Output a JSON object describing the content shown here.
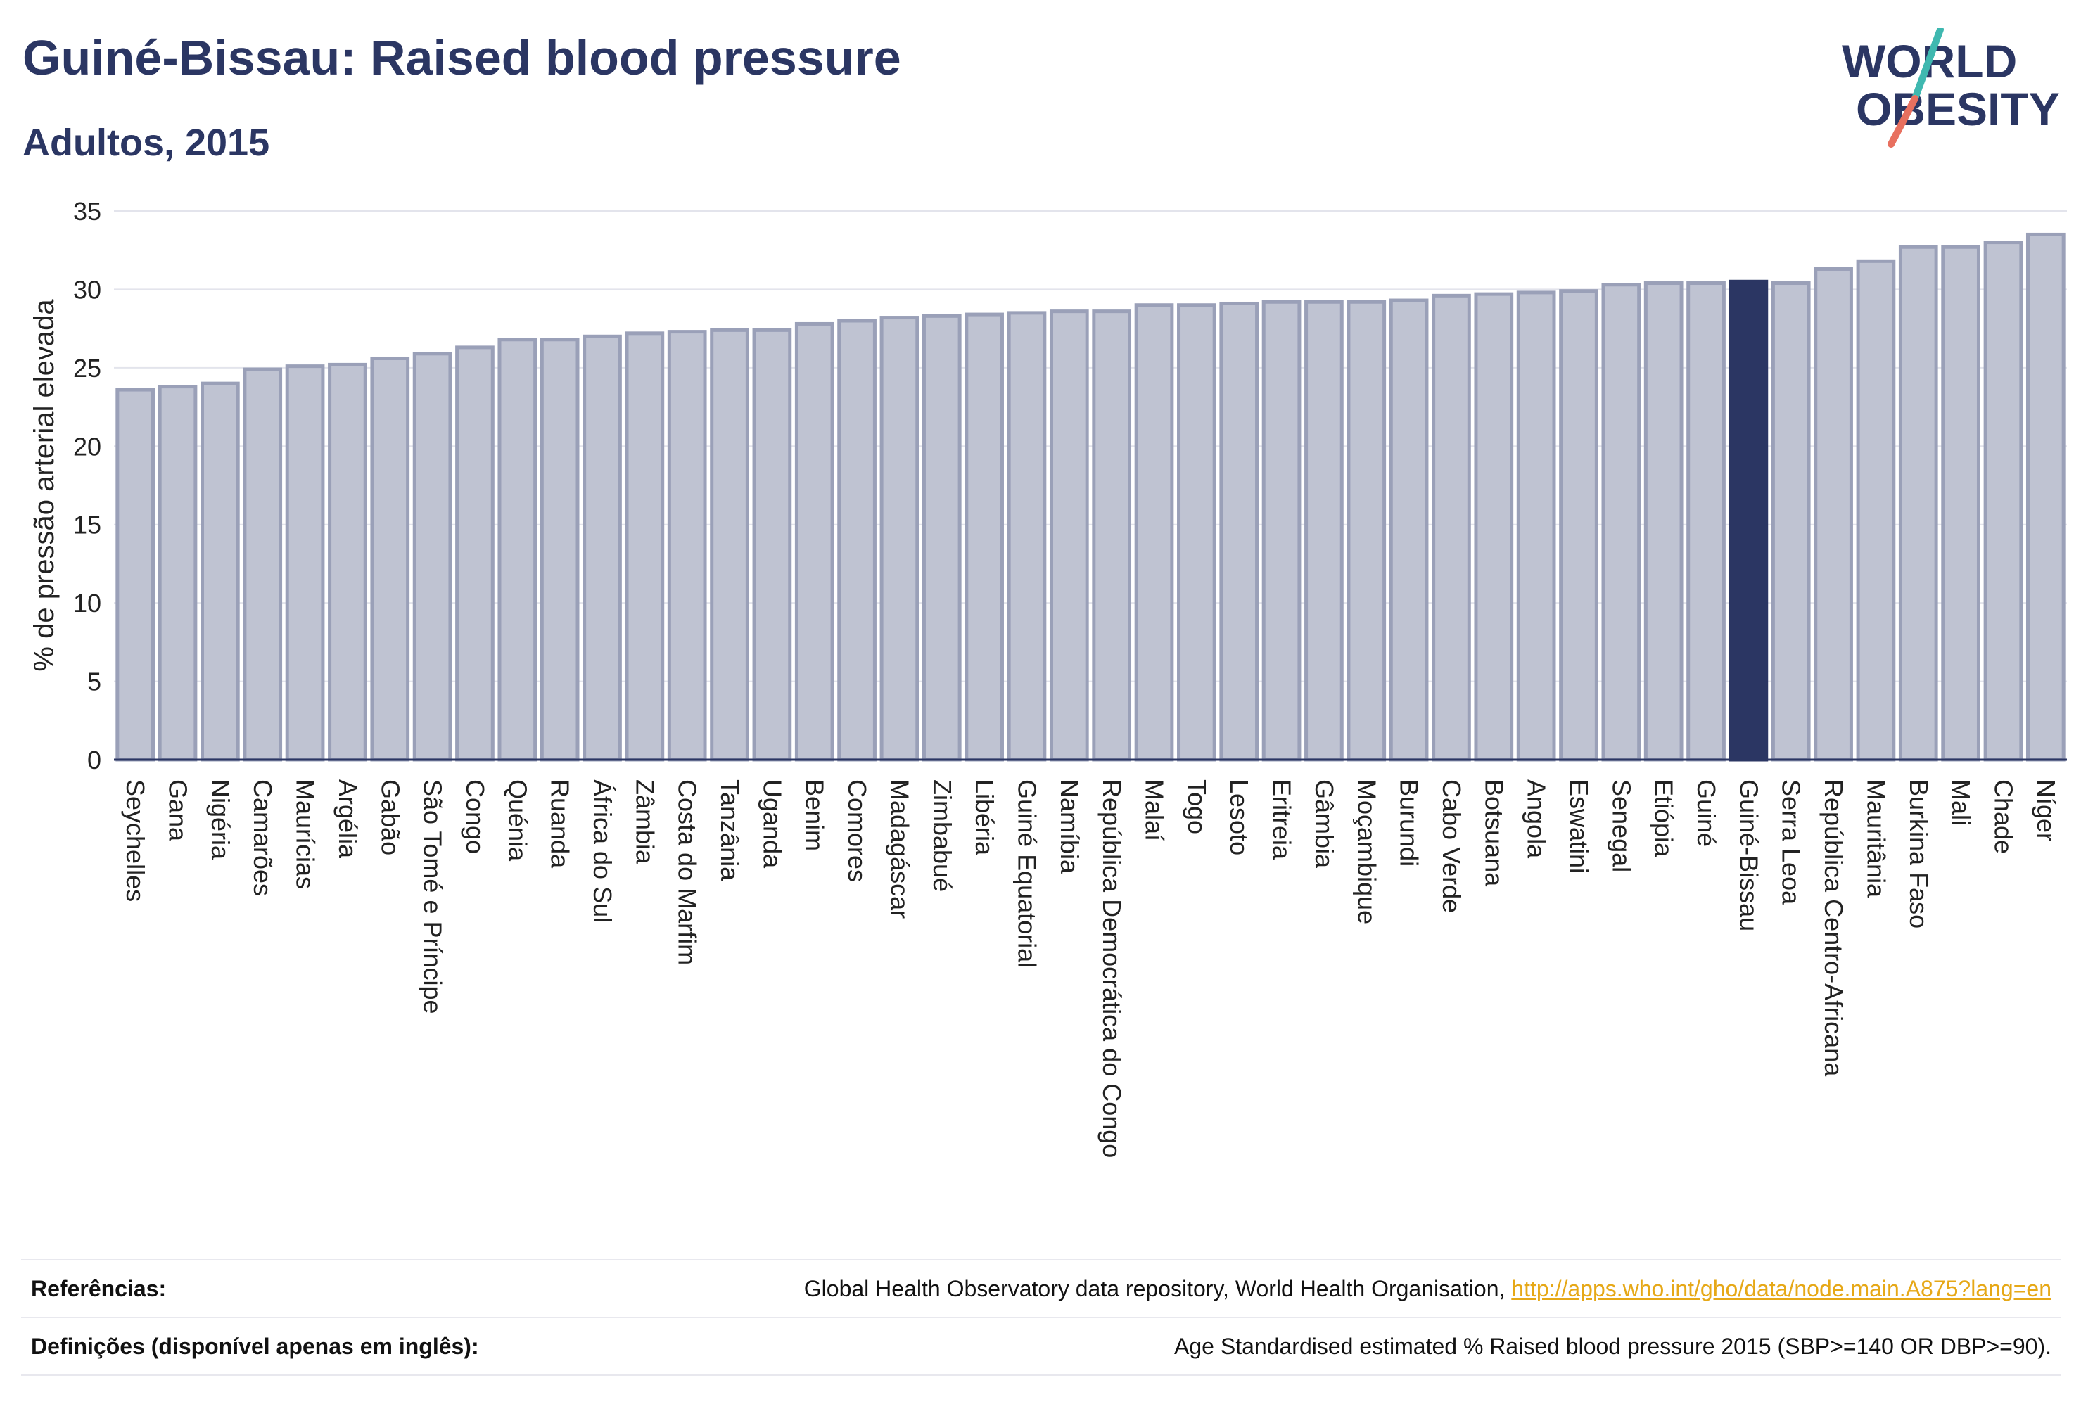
{
  "header": {
    "title": "Guiné-Bissau: Raised blood pressure",
    "subtitle": "Adultos, 2015"
  },
  "logo": {
    "line1": "WORLD",
    "line2": "OBESITY",
    "accent_teal": "#3fb8b0",
    "accent_coral": "#e8705f"
  },
  "colors": {
    "bar": "#bfc3d2",
    "bar_border": "#9aa0b8",
    "highlight": "#2b3663"
  },
  "chart_data": {
    "type": "bar",
    "ylabel": "% de pressão arterial elevada",
    "ylim": [
      0,
      35
    ],
    "yticks": [
      0,
      5,
      10,
      15,
      20,
      25,
      30,
      35
    ],
    "grid": true,
    "highlight": "Guiné-Bissau",
    "categories": [
      "Seychelles",
      "Gana",
      "Nigéria",
      "Camarões",
      "Maurícias",
      "Argélia",
      "Gabão",
      "São Tomé e Príncipe",
      "Congo",
      "Quénia",
      "Ruanda",
      "África do Sul",
      "Zâmbia",
      "Costa do Marfim",
      "Tanzânia",
      "Uganda",
      "Benim",
      "Comores",
      "Madagáscar",
      "Zimbabué",
      "Libéria",
      "Guiné Equatorial",
      "Namíbia",
      "República Democrática do Congo",
      "Malaí",
      "Togo",
      "Lesoto",
      "Eritreia",
      "Gâmbia",
      "Moçambique",
      "Burundi",
      "Cabo Verde",
      "Botsuana",
      "Angola",
      "Eswatini",
      "Senegal",
      "Etiópia",
      "Guiné",
      "Guiné-Bissau",
      "Serra Leoa",
      "República Centro-Africana",
      "Mauritânia",
      "Burkina Faso",
      "Mali",
      "Chade",
      "Níger"
    ],
    "values": [
      23.6,
      23.8,
      24.0,
      24.9,
      25.1,
      25.2,
      25.6,
      25.9,
      26.3,
      26.8,
      26.8,
      27.0,
      27.2,
      27.3,
      27.4,
      27.4,
      27.8,
      28.0,
      28.2,
      28.3,
      28.4,
      28.5,
      28.6,
      28.6,
      29.0,
      29.0,
      29.1,
      29.2,
      29.2,
      29.2,
      29.3,
      29.6,
      29.7,
      29.8,
      29.9,
      30.3,
      30.4,
      30.4,
      30.5,
      30.4,
      31.3,
      31.8,
      32.7,
      32.7,
      33.0,
      33.5
    ]
  },
  "footer": {
    "references_label": "Referências:",
    "references_text": "Global Health Observatory data repository, World Health Organisation, ",
    "references_link": "http://apps.who.int/gho/data/node.main.A875?lang=en",
    "definitions_label": "Definições (disponível apenas em inglês):",
    "definitions_text": "Age Standardised estimated % Raised blood pressure 2015 (SBP>=140 OR DBP>=90)."
  }
}
